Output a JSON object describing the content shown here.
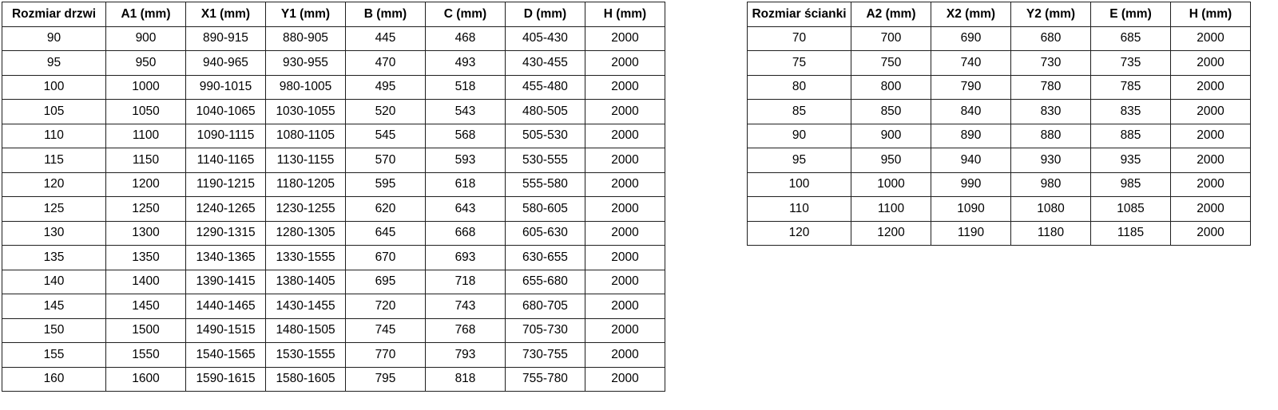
{
  "door_table": {
    "headers": [
      "Rozmiar drzwi",
      "A1 (mm)",
      "X1 (mm)",
      "Y1 (mm)",
      "B (mm)",
      "C (mm)",
      "D (mm)",
      "H (mm)"
    ],
    "rows": [
      [
        "90",
        "900",
        "890-915",
        "880-905",
        "445",
        "468",
        "405-430",
        "2000"
      ],
      [
        "95",
        "950",
        "940-965",
        "930-955",
        "470",
        "493",
        "430-455",
        "2000"
      ],
      [
        "100",
        "1000",
        "990-1015",
        "980-1005",
        "495",
        "518",
        "455-480",
        "2000"
      ],
      [
        "105",
        "1050",
        "1040-1065",
        "1030-1055",
        "520",
        "543",
        "480-505",
        "2000"
      ],
      [
        "110",
        "1100",
        "1090-1115",
        "1080-1105",
        "545",
        "568",
        "505-530",
        "2000"
      ],
      [
        "115",
        "1150",
        "1140-1165",
        "1130-1155",
        "570",
        "593",
        "530-555",
        "2000"
      ],
      [
        "120",
        "1200",
        "1190-1215",
        "1180-1205",
        "595",
        "618",
        "555-580",
        "2000"
      ],
      [
        "125",
        "1250",
        "1240-1265",
        "1230-1255",
        "620",
        "643",
        "580-605",
        "2000"
      ],
      [
        "130",
        "1300",
        "1290-1315",
        "1280-1305",
        "645",
        "668",
        "605-630",
        "2000"
      ],
      [
        "135",
        "1350",
        "1340-1365",
        "1330-1555",
        "670",
        "693",
        "630-655",
        "2000"
      ],
      [
        "140",
        "1400",
        "1390-1415",
        "1380-1405",
        "695",
        "718",
        "655-680",
        "2000"
      ],
      [
        "145",
        "1450",
        "1440-1465",
        "1430-1455",
        "720",
        "743",
        "680-705",
        "2000"
      ],
      [
        "150",
        "1500",
        "1490-1515",
        "1480-1505",
        "745",
        "768",
        "705-730",
        "2000"
      ],
      [
        "155",
        "1550",
        "1540-1565",
        "1530-1555",
        "770",
        "793",
        "730-755",
        "2000"
      ],
      [
        "160",
        "1600",
        "1590-1615",
        "1580-1605",
        "795",
        "818",
        "755-780",
        "2000"
      ]
    ]
  },
  "wall_table": {
    "headers": [
      "Rozmiar ścianki",
      "A2 (mm)",
      "X2 (mm)",
      "Y2 (mm)",
      "E (mm)",
      "H (mm)"
    ],
    "rows": [
      [
        "70",
        "700",
        "690",
        "680",
        "685",
        "2000"
      ],
      [
        "75",
        "750",
        "740",
        "730",
        "735",
        "2000"
      ],
      [
        "80",
        "800",
        "790",
        "780",
        "785",
        "2000"
      ],
      [
        "85",
        "850",
        "840",
        "830",
        "835",
        "2000"
      ],
      [
        "90",
        "900",
        "890",
        "880",
        "885",
        "2000"
      ],
      [
        "95",
        "950",
        "940",
        "930",
        "935",
        "2000"
      ],
      [
        "100",
        "1000",
        "990",
        "980",
        "985",
        "2000"
      ],
      [
        "110",
        "1100",
        "1090",
        "1080",
        "1085",
        "2000"
      ],
      [
        "120",
        "1200",
        "1190",
        "1180",
        "1185",
        "2000"
      ]
    ]
  },
  "colors": {
    "border": "#1f1f1f",
    "text": "#000000",
    "background": "#ffffff"
  }
}
